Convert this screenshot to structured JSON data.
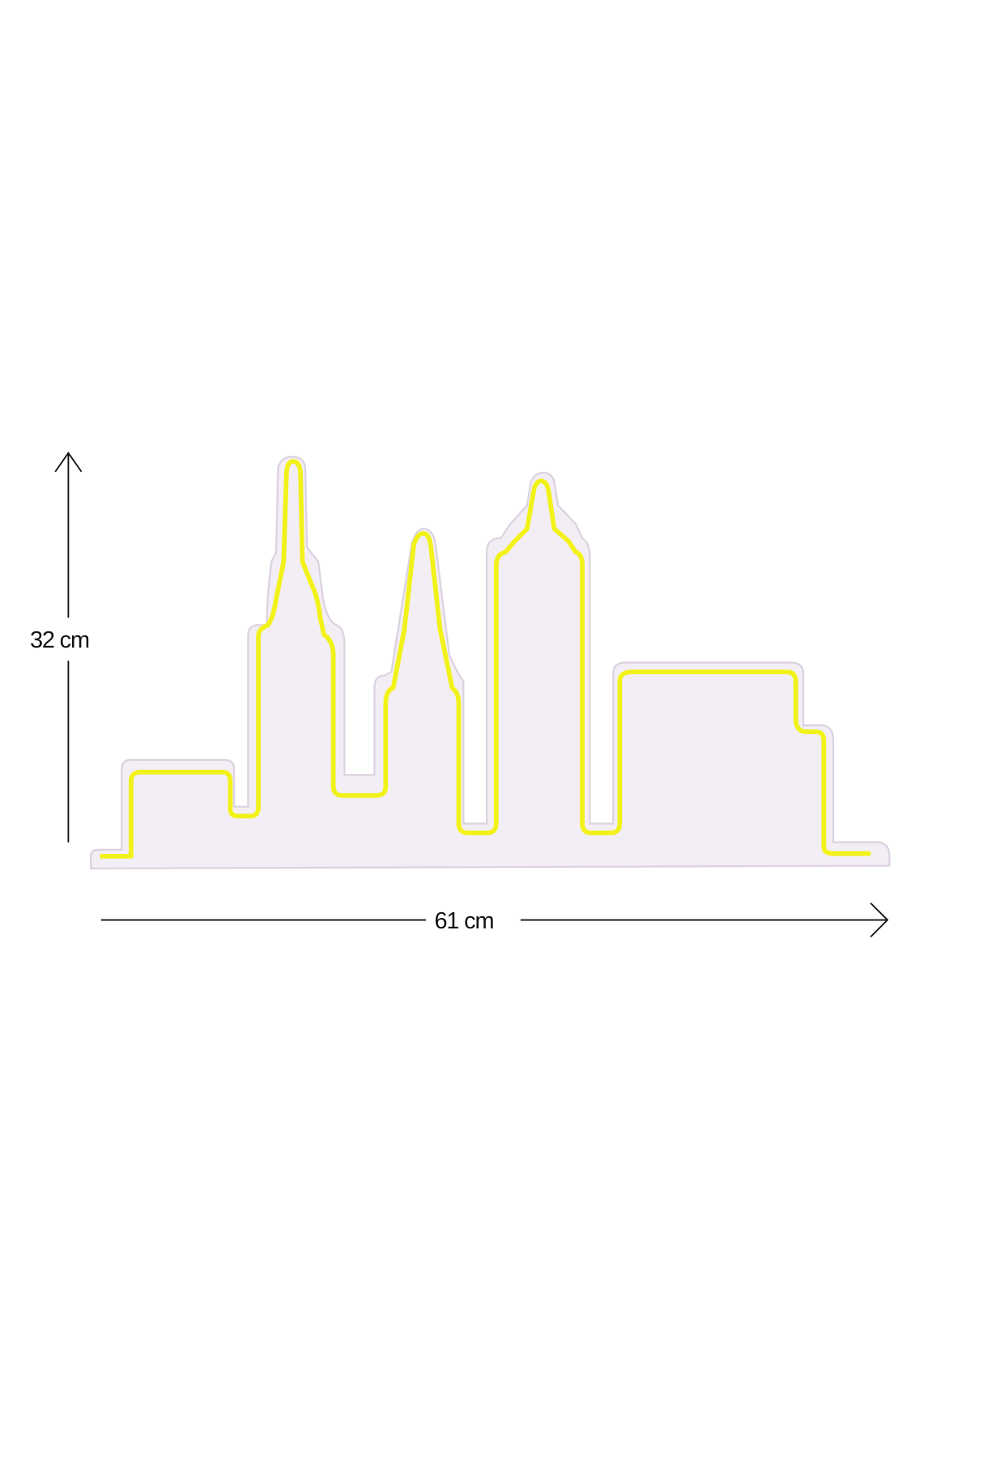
{
  "product": {
    "name_icon": "city-skyline-neon-sign",
    "board_color": "#f3eef6",
    "neon_color": "#f2f21a"
  },
  "dimensions": {
    "height_label": "32 cm",
    "width_label": "61 cm"
  }
}
